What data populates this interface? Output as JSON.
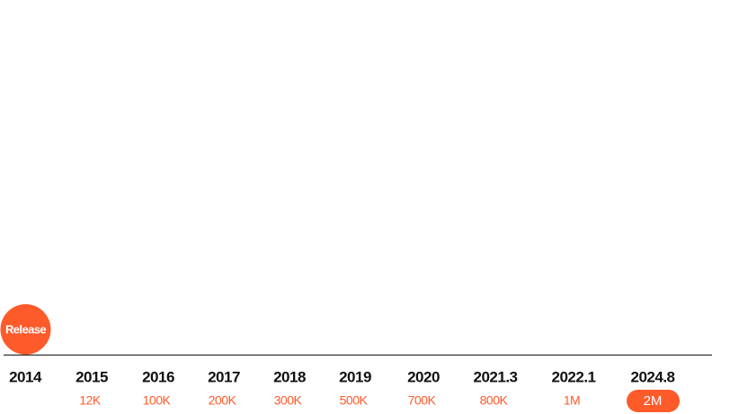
{
  "timeline": {
    "start_badge": "Release",
    "items": [
      {
        "year": "2014"
      },
      {
        "year": "2015",
        "count": "12K"
      },
      {
        "year": "2016",
        "count": "100K"
      },
      {
        "year": "2017",
        "count": "200K"
      },
      {
        "year": "2018",
        "count": "300K"
      },
      {
        "year": "2019",
        "count": "500K"
      },
      {
        "year": "2020",
        "count": "700K"
      },
      {
        "year": "2021.3",
        "count": "800K"
      },
      {
        "year": "2022.1",
        "count": "1M"
      },
      {
        "year": "2024.8",
        "count": "2M"
      }
    ]
  }
}
